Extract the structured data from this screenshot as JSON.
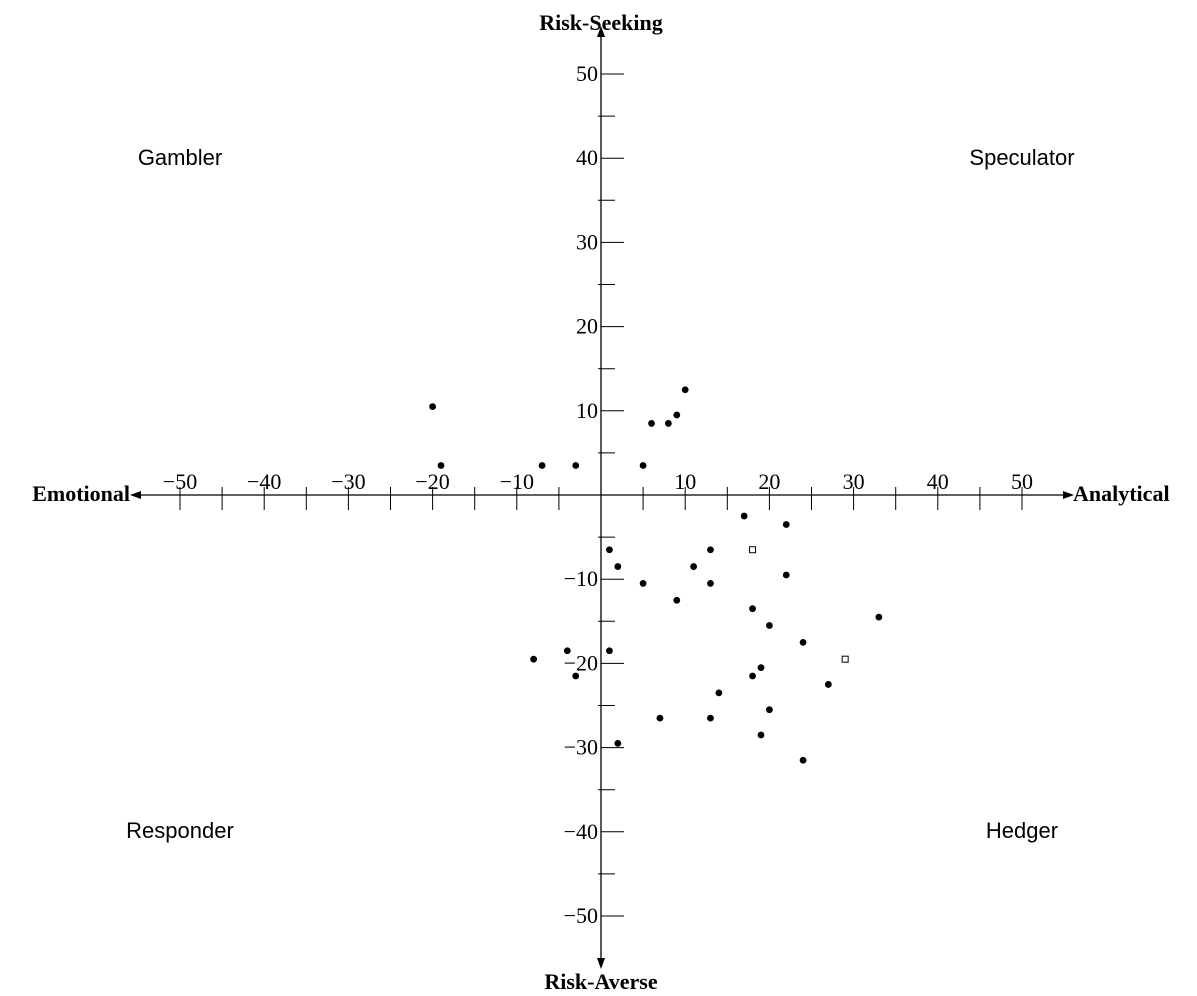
{
  "chart_data": {
    "type": "scatter",
    "title": "",
    "axes": {
      "x_negative_label": "Emotional",
      "x_positive_label": "Analytical",
      "y_positive_label": "Risk-Seeking",
      "y_negative_label": "Risk-Averse"
    },
    "xlim": [
      -55,
      55
    ],
    "ylim": [
      -55,
      55
    ],
    "major_ticks": [
      -50,
      -40,
      -30,
      -20,
      -10,
      10,
      20,
      30,
      40,
      50
    ],
    "minor_ticks": [
      -45,
      -35,
      -25,
      -15,
      -5,
      5,
      15,
      25,
      35,
      45
    ],
    "x_tick_labels": [
      "−50",
      "−40",
      "−30",
      "−20",
      "−10",
      "10",
      "20",
      "30",
      "40",
      "50"
    ],
    "y_tick_labels": [
      "50",
      "40",
      "30",
      "20",
      "10",
      "−10",
      "−20",
      "−30",
      "−40",
      "−50"
    ],
    "quadrants": {
      "top_left": "Gambler",
      "top_right": "Speculator",
      "bottom_left": "Responder",
      "bottom_right": "Hedger"
    },
    "grid": false,
    "series": [
      {
        "marker": "filled-circle",
        "x": [
          -20,
          -19,
          -7,
          -3,
          5,
          6,
          8,
          9,
          10,
          17,
          22,
          1,
          2,
          13,
          5,
          11,
          13,
          22,
          9,
          18,
          33,
          20,
          24,
          -8,
          -4,
          1,
          -3,
          19,
          18,
          27,
          14,
          20,
          7,
          13,
          2,
          19,
          24
        ],
        "y": [
          10.5,
          3.5,
          3.5,
          3.5,
          3.5,
          8.5,
          8.5,
          9.5,
          12.5,
          -2.5,
          -3.5,
          -6.5,
          -8.5,
          -6.5,
          -10.5,
          -8.5,
          -10.5,
          -9.5,
          -12.5,
          -13.5,
          -14.5,
          -15.5,
          -17.5,
          -19.5,
          -18.5,
          -18.5,
          -21.5,
          -20.5,
          -21.5,
          -22.5,
          -23.5,
          -25.5,
          -26.5,
          -26.5,
          -29.5,
          -28.5,
          -31.5
        ]
      },
      {
        "marker": "hollow-square",
        "x": [
          18,
          29
        ],
        "y": [
          -6.5,
          -19.5
        ]
      }
    ]
  }
}
